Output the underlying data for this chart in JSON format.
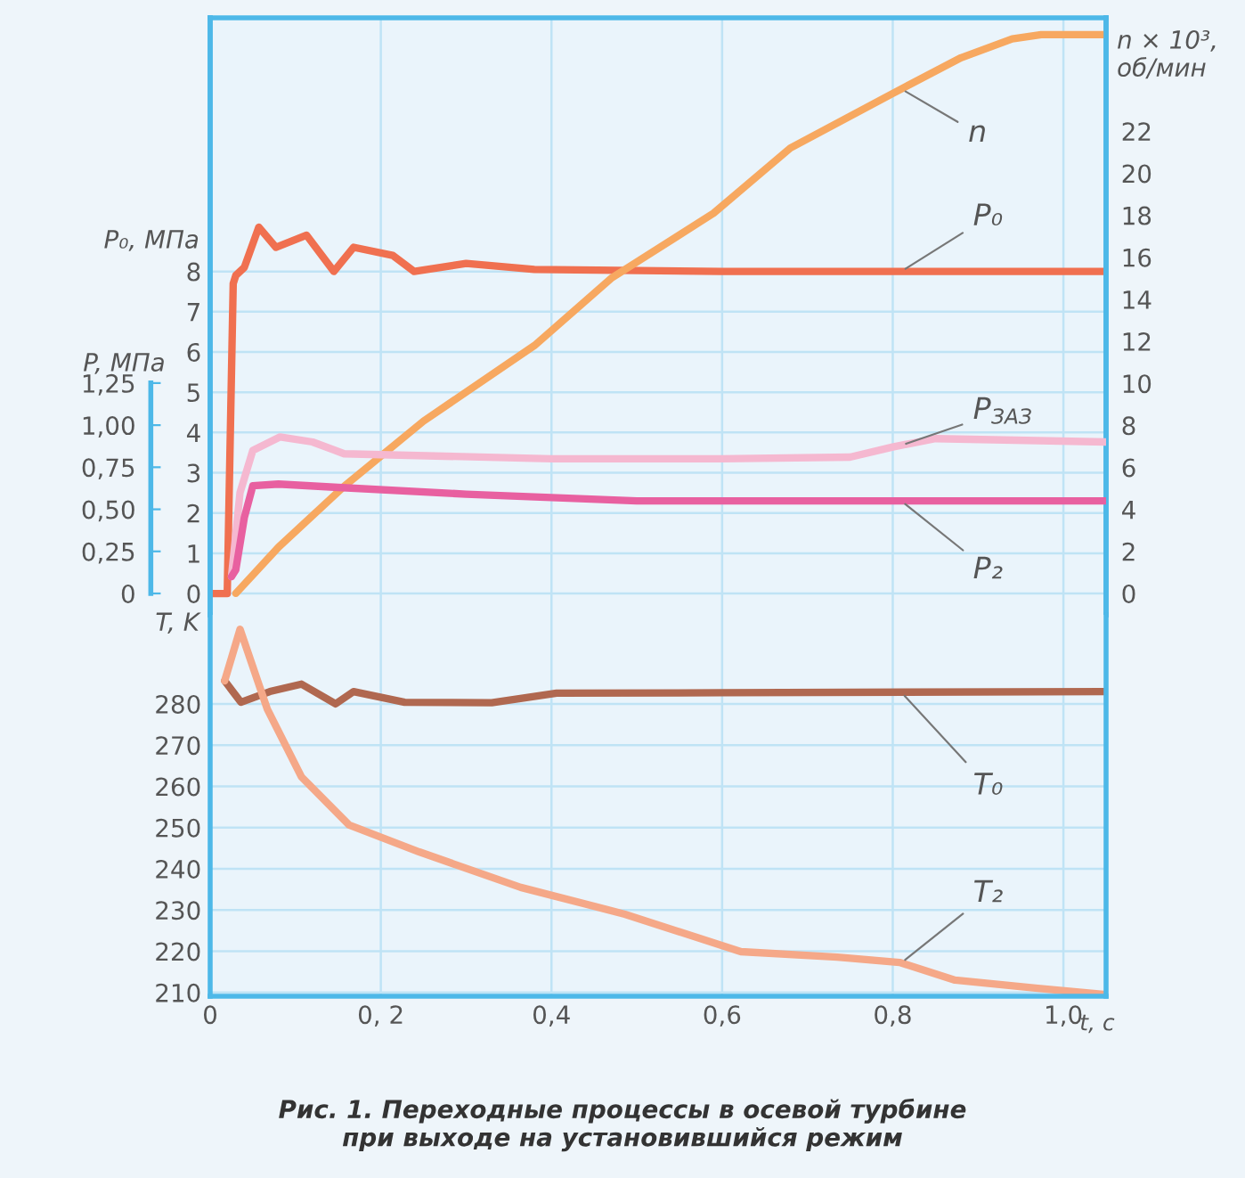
{
  "chart_data": [
    {
      "type": "line",
      "ylabel": "P₀, МПа",
      "y2label": "n × 10³,\nоб/мин",
      "y3label": "P, МПа",
      "xlim": [
        0,
        1.05
      ],
      "xticks": [
        0,
        0.2,
        0.4,
        0.6,
        0.8,
        1.0
      ],
      "tick_labels": "y",
      "ylim": [
        -0.53,
        14.3
      ],
      "yticks": [
        0,
        1,
        2,
        3,
        4,
        5,
        6,
        7,
        8
      ],
      "y2lim": [
        -1.02,
        27.4
      ],
      "y2ticks": [
        0,
        2,
        4,
        6,
        8,
        10,
        12,
        14,
        16,
        18,
        20,
        22
      ],
      "y3lim": [
        -0.127,
        3.42
      ],
      "y3ticks": [
        0,
        {
          "value": 0.25,
          "label": "0,25"
        },
        {
          "value": 0.5,
          "label": "0,50"
        },
        {
          "value": 0.75,
          "label": "0,75"
        },
        {
          "value": 1.0,
          "label": "1,00"
        },
        {
          "value": 1.25,
          "label": "1,25"
        }
      ],
      "grid": true,
      "series": [
        {
          "name": "n",
          "axis": "y2",
          "color": "#f7a860",
          "x": [
            0.03,
            0.08,
            0.157,
            0.25,
            0.38,
            0.47,
            0.59,
            0.68,
            0.8,
            0.88,
            0.94,
            0.974,
            1.05
          ],
          "values": [
            0,
            2.2,
            5.1,
            8.2,
            11.8,
            15.0,
            18.1,
            21.2,
            23.8,
            25.5,
            26.4,
            26.6,
            26.6
          ]
        },
        {
          "name": "P₀",
          "color": "#f07050",
          "x": [
            0,
            0.02,
            0.027,
            0.03,
            0.04,
            0.057,
            0.077,
            0.113,
            0.145,
            0.168,
            0.214,
            0.239,
            0.3,
            0.38,
            0.6,
            1.05
          ],
          "values": [
            0,
            0,
            7.7,
            7.9,
            8.1,
            9.1,
            8.6,
            8.9,
            8.0,
            8.6,
            8.4,
            8.0,
            8.2,
            8.05,
            8.0,
            8.0
          ]
        },
        {
          "name": "P$_{ЗАЗ}$",
          "axis": "y3",
          "color": "#f5b8d0",
          "x": [
            0.025,
            0.035,
            0.05,
            0.082,
            0.12,
            0.157,
            0.4,
            0.6,
            0.75,
            0.8,
            0.85,
            1.05
          ],
          "values": [
            0.1,
            0.6,
            0.85,
            0.93,
            0.9,
            0.83,
            0.8,
            0.8,
            0.81,
            0.87,
            0.92,
            0.9
          ]
        },
        {
          "name": "P₂",
          "axis": "y3",
          "color": "#e860a0",
          "x": [
            0.025,
            0.03,
            0.04,
            0.05,
            0.08,
            0.15,
            0.3,
            0.5,
            1.05
          ],
          "values": [
            0.1,
            0.14,
            0.45,
            0.64,
            0.65,
            0.63,
            0.59,
            0.55,
            0.55
          ]
        }
      ]
    },
    {
      "type": "line",
      "title": "Рис. 1. Переходные процессы в осевой турбине\nпри выходе на установившийся режим",
      "xlabel": "t, c",
      "ylabel": "T, K",
      "xlim": [
        0,
        1.05
      ],
      "xticks": [
        0,
        {
          "value": 0.2,
          "label": "0, 2"
        },
        {
          "value": 0.4,
          "label": "0,4"
        },
        {
          "value": 0.6,
          "label": "0,6"
        },
        {
          "value": 0.8,
          "label": "0,8"
        },
        {
          "value": 1.0,
          "label": "1,0"
        }
      ],
      "ylim": [
        209.1,
        301.6
      ],
      "yticks": [
        210,
        220,
        230,
        240,
        250,
        260,
        270,
        280
      ],
      "grid": true,
      "series": [
        {
          "name": "T₀",
          "color": "#b06850",
          "x": [
            0.017,
            0.036,
            0.07,
            0.107,
            0.147,
            0.168,
            0.228,
            0.33,
            0.406,
            0.6,
            1.05
          ],
          "values": [
            285.6,
            280.4,
            283,
            284.8,
            280,
            283,
            280.4,
            280.3,
            282.6,
            282.7,
            283
          ]
        },
        {
          "name": "T₂",
          "color": "#f5a888",
          "x": [
            0.017,
            0.035,
            0.067,
            0.107,
            0.163,
            0.245,
            0.364,
            0.486,
            0.622,
            0.735,
            0.808,
            0.873,
            0.97,
            1.05
          ],
          "values": [
            285.6,
            298.1,
            278.7,
            262.3,
            250.6,
            244.1,
            235.5,
            229,
            219.9,
            218.6,
            217.3,
            213,
            211,
            209.5
          ]
        }
      ]
    }
  ]
}
